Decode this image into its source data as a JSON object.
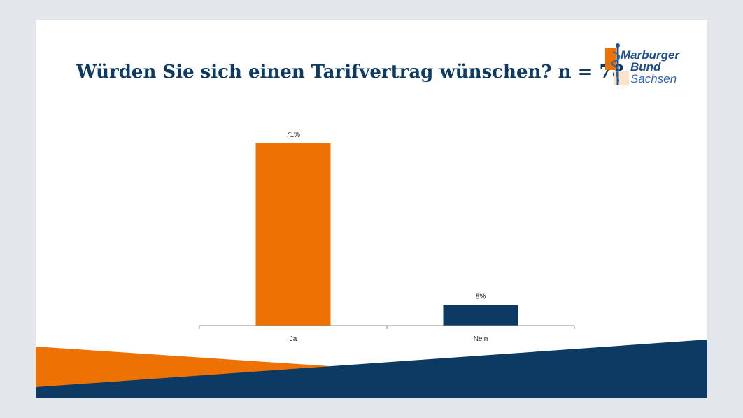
{
  "slide": {
    "title": "Würden Sie sich einen Tarifvertrag wünschen? n = 78",
    "logo": {
      "line1": "Marburger",
      "line2": "Bund",
      "line3": "Sachsen",
      "icon": "staff-of-asclepius-icon"
    }
  },
  "colors": {
    "orange": "#ee7203",
    "navy": "#0c3a63",
    "background": "#e3e6ea"
  },
  "chart_data": {
    "type": "bar",
    "categories": [
      "Ja",
      "Nein"
    ],
    "values": [
      71,
      8
    ],
    "value_labels": [
      "71%",
      "8%"
    ],
    "bar_colors": [
      "#ee7203",
      "#0c3a63"
    ],
    "ylim": [
      0,
      71
    ],
    "grid": false,
    "legend": "none"
  }
}
